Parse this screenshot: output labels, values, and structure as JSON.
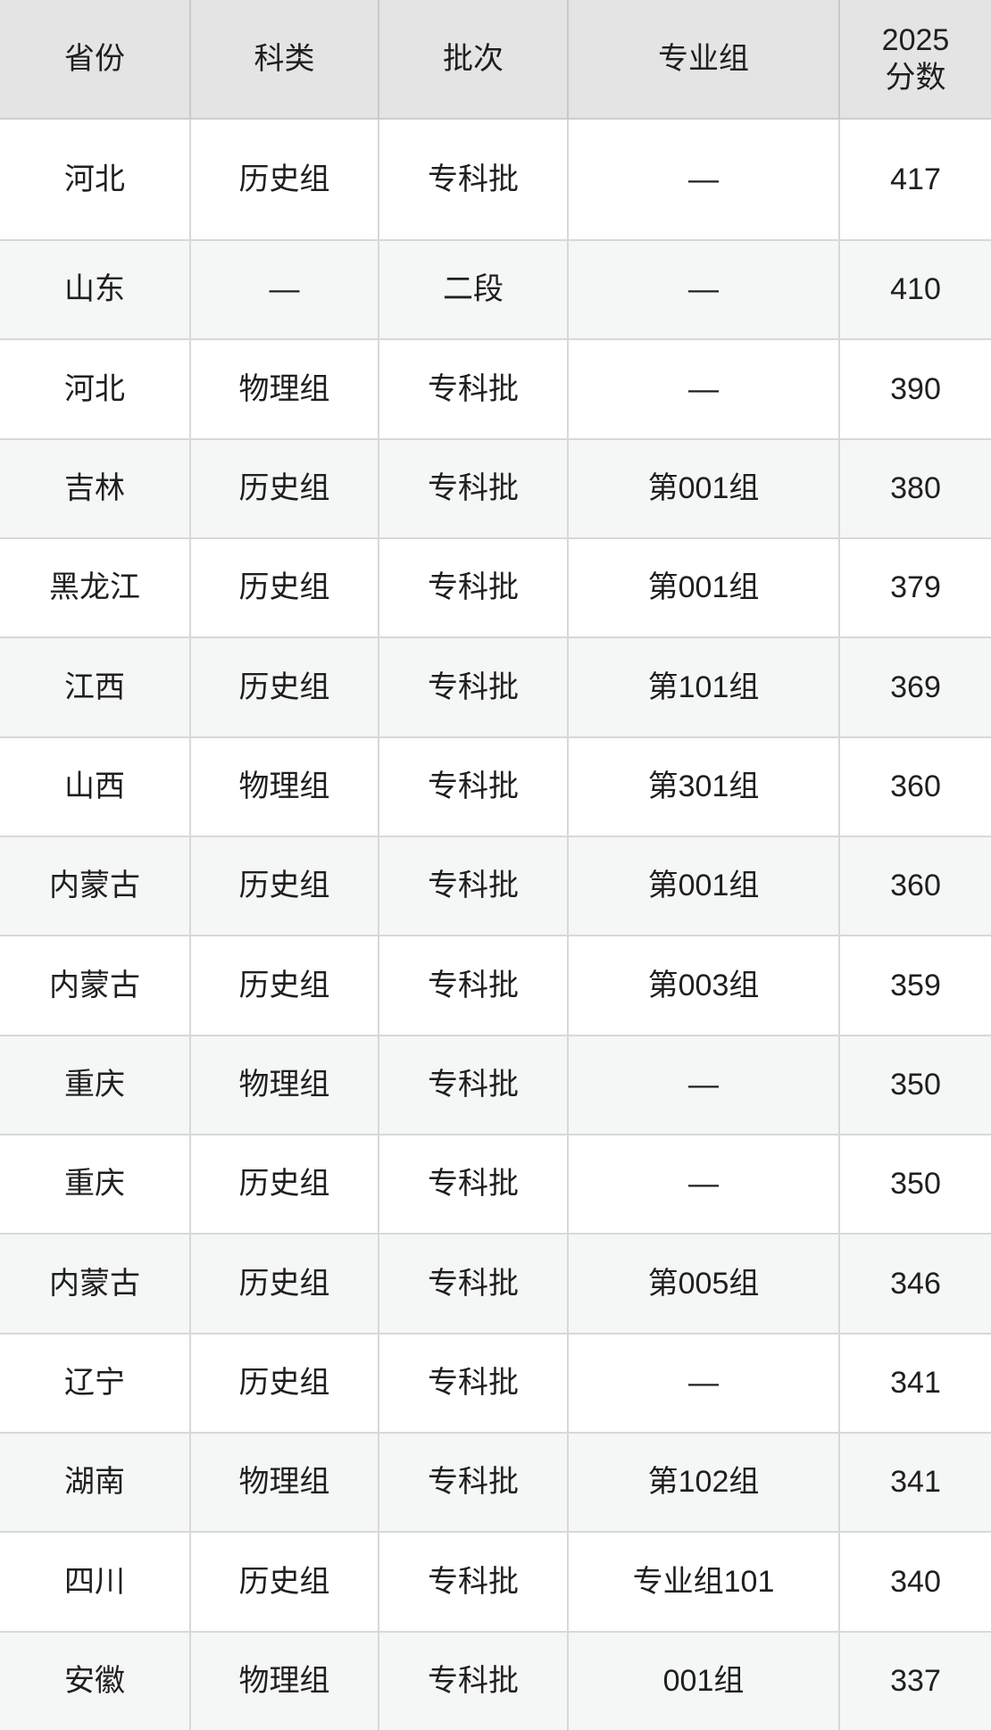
{
  "chart_data": {
    "type": "table",
    "columns": [
      "省份",
      "科类",
      "批次",
      "专业组",
      "2025分数"
    ],
    "rows": [
      [
        "河北",
        "历史组",
        "专科批",
        "—",
        "417"
      ],
      [
        "山东",
        "—",
        "二段",
        "—",
        "410"
      ],
      [
        "河北",
        "物理组",
        "专科批",
        "—",
        "390"
      ],
      [
        "吉林",
        "历史组",
        "专科批",
        "第001组",
        "380"
      ],
      [
        "黑龙江",
        "历史组",
        "专科批",
        "第001组",
        "379"
      ],
      [
        "江西",
        "历史组",
        "专科批",
        "第101组",
        "369"
      ],
      [
        "山西",
        "物理组",
        "专科批",
        "第301组",
        "360"
      ],
      [
        "内蒙古",
        "历史组",
        "专科批",
        "第001组",
        "360"
      ],
      [
        "内蒙古",
        "历史组",
        "专科批",
        "第003组",
        "359"
      ],
      [
        "重庆",
        "物理组",
        "专科批",
        "—",
        "350"
      ],
      [
        "重庆",
        "历史组",
        "专科批",
        "—",
        "350"
      ],
      [
        "内蒙古",
        "历史组",
        "专科批",
        "第005组",
        "346"
      ],
      [
        "辽宁",
        "历史组",
        "专科批",
        "—",
        "341"
      ],
      [
        "湖南",
        "物理组",
        "专科批",
        "第102组",
        "341"
      ],
      [
        "四川",
        "历史组",
        "专科批",
        "专业组101",
        "340"
      ],
      [
        "安徽",
        "物理组",
        "专科批",
        "001组",
        "337"
      ]
    ],
    "layout": {
      "grid": true,
      "header_row": true,
      "zebra_striping": true
    }
  },
  "colors": {
    "header_bg": "#e4e4e4",
    "row_bg": "#ffffff",
    "row_alt_bg": "#f5f6f6",
    "border": "#d8d8d8",
    "text": "#1f1f1f"
  }
}
